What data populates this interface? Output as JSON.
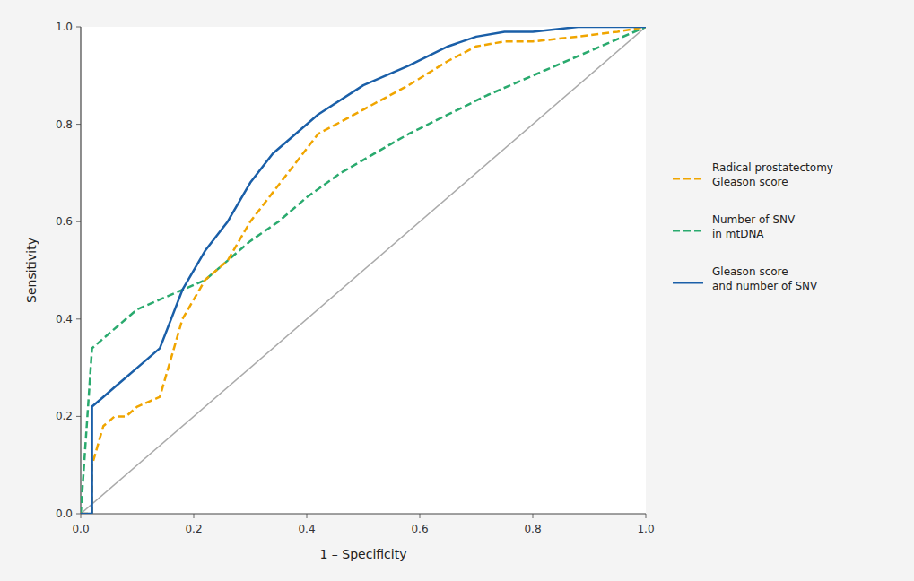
{
  "chart_data": {
    "type": "line",
    "x_label": "1 – Specificity",
    "y_label": "Sensitivity",
    "xlim": [
      0.0,
      1.0
    ],
    "ylim": [
      0.0,
      1.0
    ],
    "xticks": [
      {
        "value": 0.0,
        "label": "0.0"
      },
      0.2,
      0.4,
      0.6,
      0.8,
      {
        "value": 1.0,
        "label": "1.0"
      }
    ],
    "yticks": [
      {
        "value": 0.0,
        "label": "0.0"
      },
      0.2,
      0.4,
      0.6,
      0.8,
      {
        "value": 1.0,
        "label": "1.0"
      }
    ],
    "grid": false,
    "legend": "right",
    "series": [
      {
        "name": "Radical prostatectomy\nGleason score",
        "color": "#f0a500",
        "line_style": "dashed",
        "x": [
          0.0,
          0.02,
          0.02,
          0.04,
          0.06,
          0.08,
          0.1,
          0.14,
          0.18,
          0.22,
          0.26,
          0.3,
          0.34,
          0.38,
          0.42,
          0.5,
          0.58,
          0.65,
          0.7,
          0.75,
          0.8,
          0.88,
          0.95,
          1.0
        ],
        "values": [
          0.0,
          0.0,
          0.1,
          0.18,
          0.2,
          0.2,
          0.22,
          0.24,
          0.4,
          0.48,
          0.52,
          0.6,
          0.66,
          0.72,
          0.78,
          0.83,
          0.88,
          0.93,
          0.96,
          0.97,
          0.97,
          0.98,
          0.99,
          1.0
        ]
      },
      {
        "name": "Number of SNV\nin mtDNA",
        "color": "#2aaa6e",
        "line_style": "dashed",
        "x": [
          0.0,
          0.02,
          0.04,
          0.06,
          0.08,
          0.1,
          0.14,
          0.18,
          0.22,
          0.26,
          0.3,
          0.35,
          0.4,
          0.46,
          0.52,
          0.58,
          0.65,
          0.72,
          0.8,
          0.88,
          0.94,
          1.0
        ],
        "values": [
          0.0,
          0.34,
          0.36,
          0.38,
          0.4,
          0.42,
          0.44,
          0.46,
          0.48,
          0.52,
          0.56,
          0.6,
          0.65,
          0.7,
          0.74,
          0.78,
          0.82,
          0.86,
          0.9,
          0.94,
          0.97,
          1.0
        ]
      },
      {
        "name": "Gleason score\nand number of SNV",
        "color": "#1a5fa8",
        "line_style": "solid",
        "x": [
          0.0,
          0.02,
          0.02,
          0.04,
          0.06,
          0.08,
          0.1,
          0.14,
          0.18,
          0.22,
          0.26,
          0.3,
          0.34,
          0.38,
          0.42,
          0.5,
          0.58,
          0.65,
          0.7,
          0.75,
          0.8,
          0.88,
          0.95,
          1.0
        ],
        "values": [
          0.0,
          0.0,
          0.22,
          0.24,
          0.26,
          0.28,
          0.3,
          0.34,
          0.46,
          0.54,
          0.6,
          0.68,
          0.74,
          0.78,
          0.82,
          0.88,
          0.92,
          0.96,
          0.98,
          0.99,
          0.99,
          1.0,
          1.0,
          1.0
        ]
      }
    ]
  }
}
